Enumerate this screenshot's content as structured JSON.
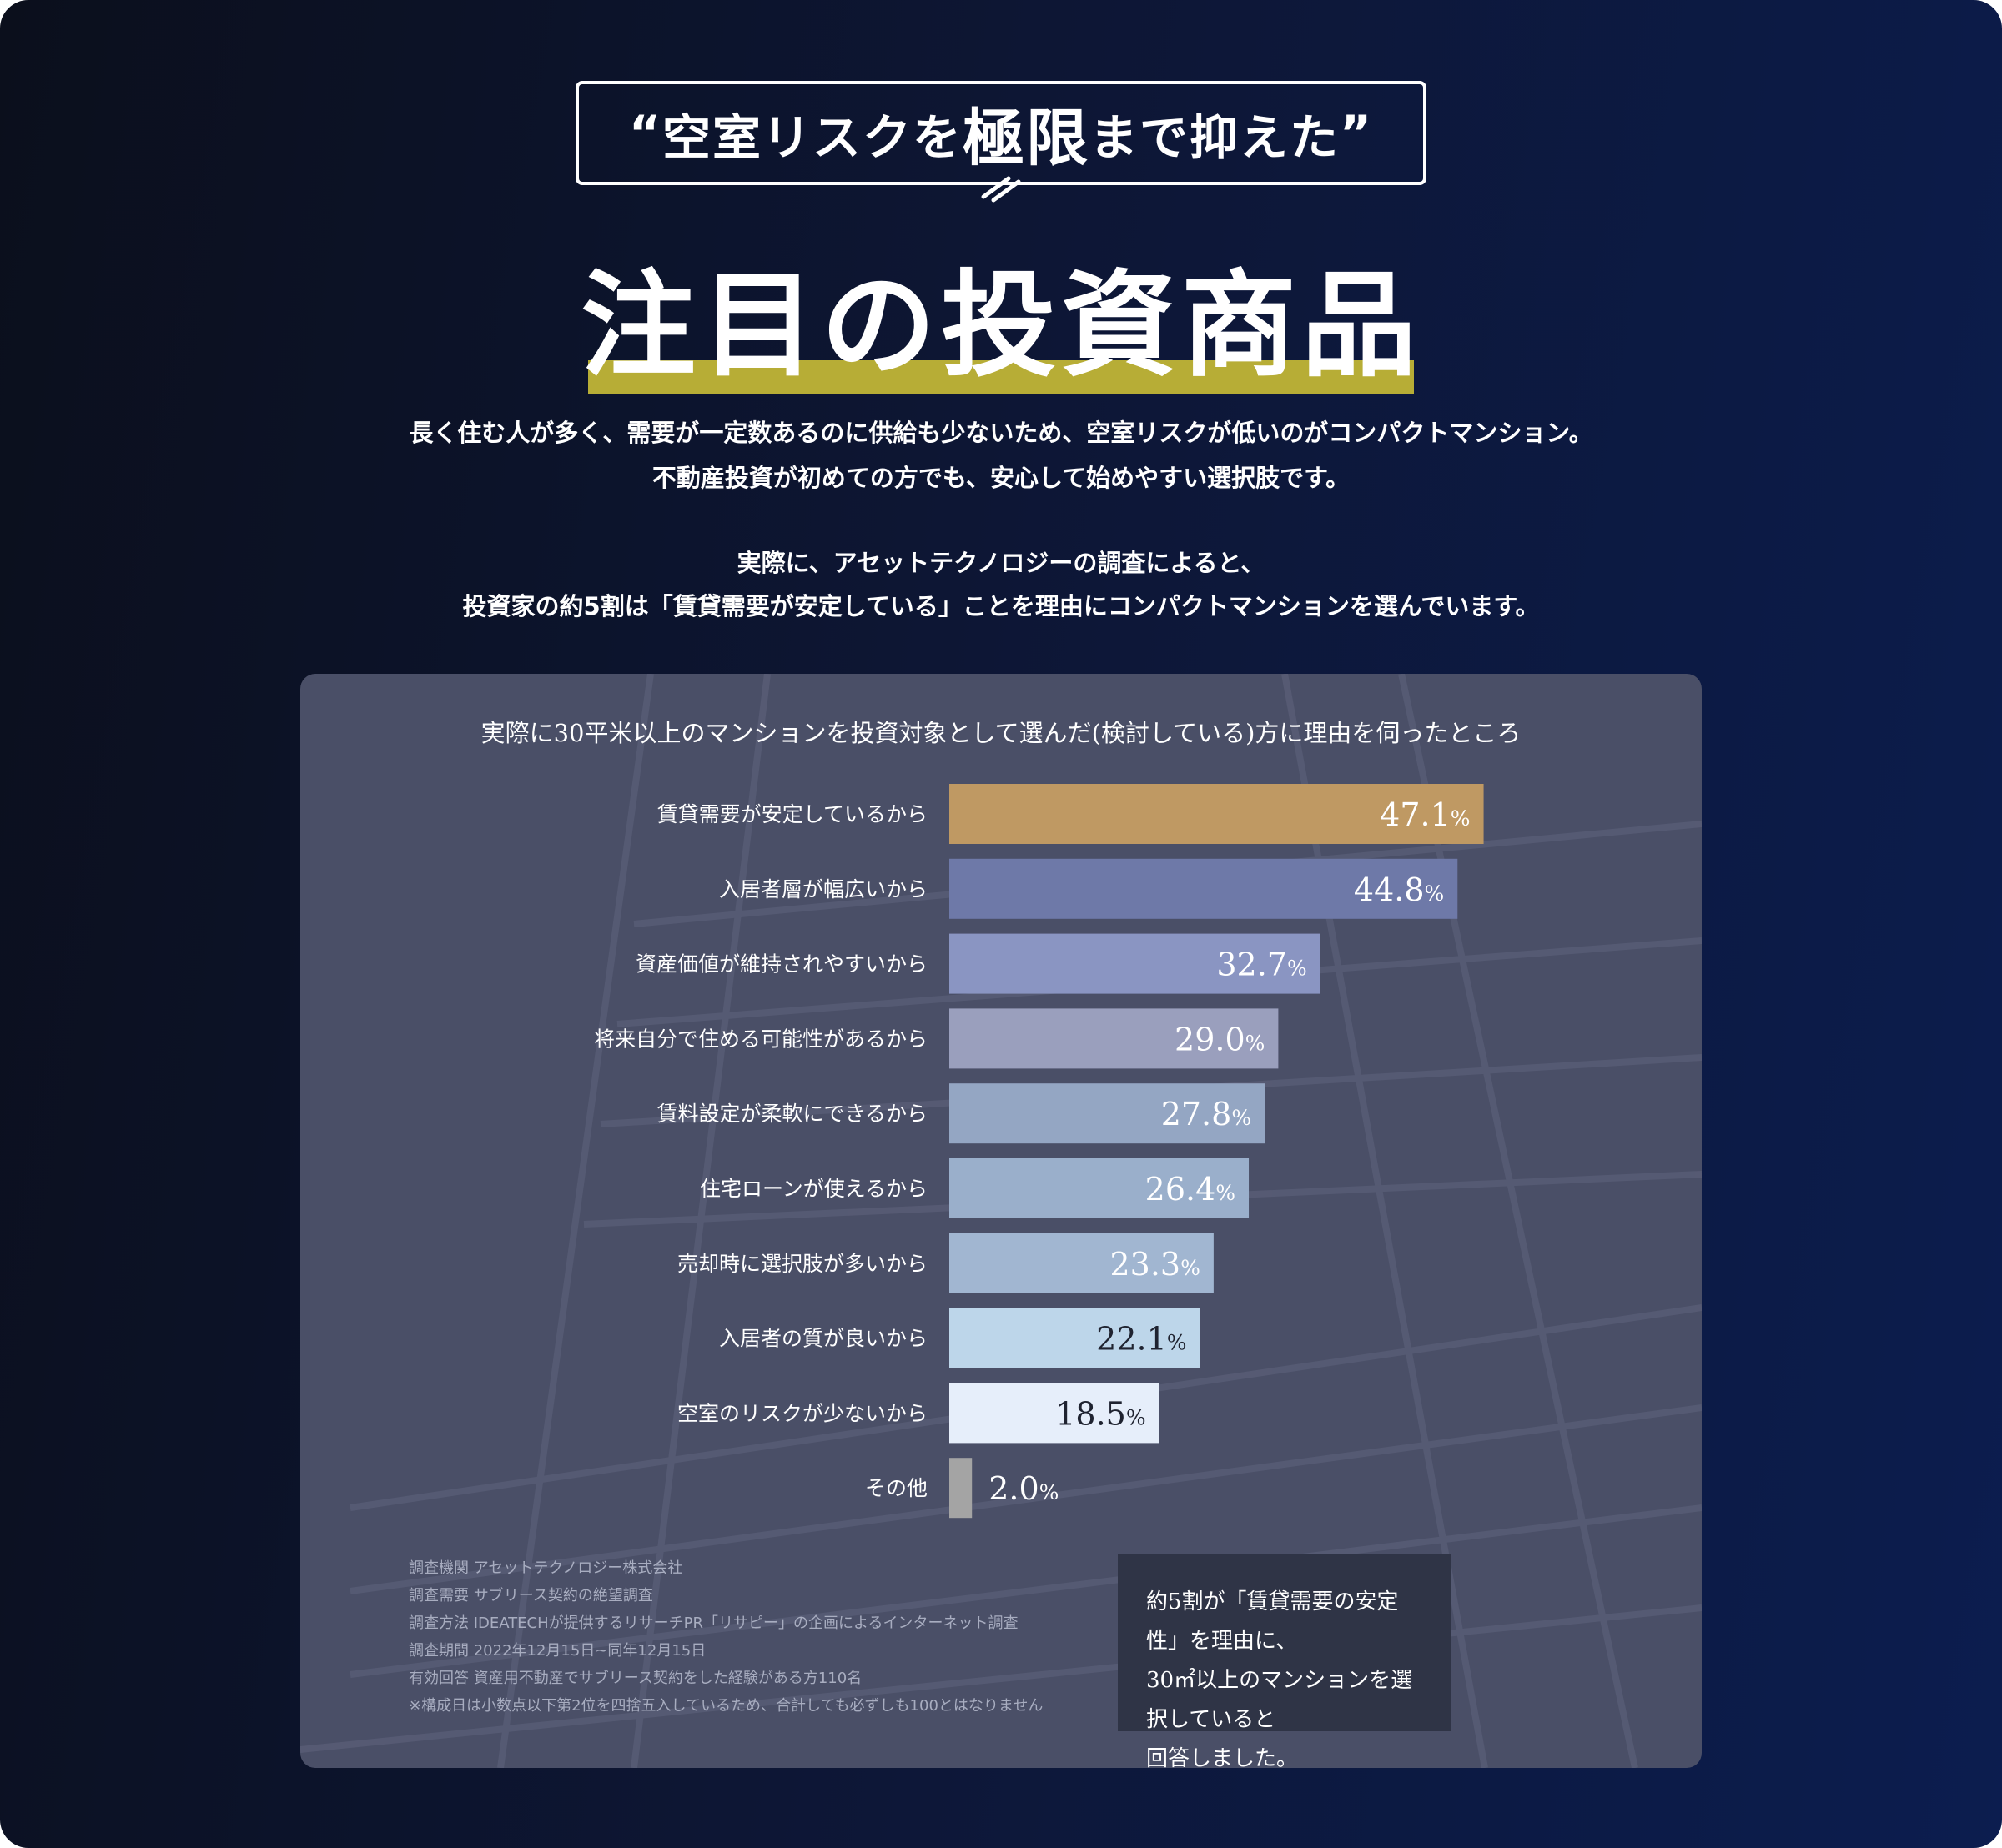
{
  "tagline": {
    "open_quote": "“",
    "part1": "空室リスクを",
    "emphasis": "極限",
    "part2": "まで抑えた",
    "close_quote": "”"
  },
  "main_title": "注目の投資商品",
  "intro": {
    "line1": "長く住む人が多く、需要が一定数あるのに供給も少ないため、空室リスクが低いのがコンパクトマンション。",
    "line2": "不動産投資が初めての方でも、安心して始めやすい選択肢です。",
    "line3": "実際に、アセットテクノロジーの調査によると、",
    "line4": "投資家の約5割は「賃貸需要が安定している」ことを理由にコンパクトマンションを選んでいます。"
  },
  "chart_data": {
    "type": "bar",
    "orientation": "horizontal",
    "title": "実際に30平米以上のマンションを投資対象として選んだ(検討している)方に理由を伺ったところ",
    "categories": [
      "賃貸需要が安定しているから",
      "入居者層が幅広いから",
      "資産価値が維持されやすいから",
      "将来自分で住める可能性があるから",
      "賃料設定が柔軟にできるから",
      "住宅ローンが使えるから",
      "売却時に選択肢が多いから",
      "入居者の質が良いから",
      "空室のリスクが少ないから",
      "その他"
    ],
    "values": [
      47.1,
      44.8,
      32.7,
      29.0,
      27.8,
      26.4,
      23.3,
      22.1,
      18.5,
      2.0
    ],
    "value_labels": [
      "47.1",
      "44.8",
      "32.7",
      "29.0",
      "27.8",
      "26.4",
      "23.3",
      "22.1",
      "18.5",
      "2.0"
    ],
    "unit": "%",
    "colors": [
      "#bf9963",
      "#6e79a8",
      "#8a95c2",
      "#9a9fbd",
      "#94a6c3",
      "#9aafcb",
      "#a1b6d1",
      "#bdd6ea",
      "#e6eefa",
      "#a4a4a4"
    ],
    "value_text_colors": [
      "#ffffff",
      "#ffffff",
      "#ffffff",
      "#ffffff",
      "#ffffff",
      "#ffffff",
      "#ffffff",
      "#1f2330",
      "#1f2330",
      "#ffffff"
    ],
    "xlim": [
      0,
      100
    ],
    "grid": false,
    "legend": "none"
  },
  "survey_meta": [
    "調査機関 アセットテクノロジー株式会社",
    "調査需要 サブリース契約の絶望調査",
    "調査方法 IDEATECHが提供するリサーチPR「リサピー」の企画によるインターネット調査",
    "調査期間 2022年12月15日~同年12月15日",
    "有効回答 資産用不動産でサブリース契約をした経験がある方110名",
    "※構成日は小数点以下第2位を四捨五入しているため、合計しても必ずしも100とはなりません"
  ],
  "callout": {
    "line1": "約5割が「賃貸需要の安定性」を理由に、",
    "line2": "30㎡以上のマンションを選択していると",
    "line3": "回答しました。"
  },
  "colors": {
    "accent_underline": "#b7ad36",
    "panel": "#4a4f67",
    "callout_bg": "#2f3446"
  }
}
